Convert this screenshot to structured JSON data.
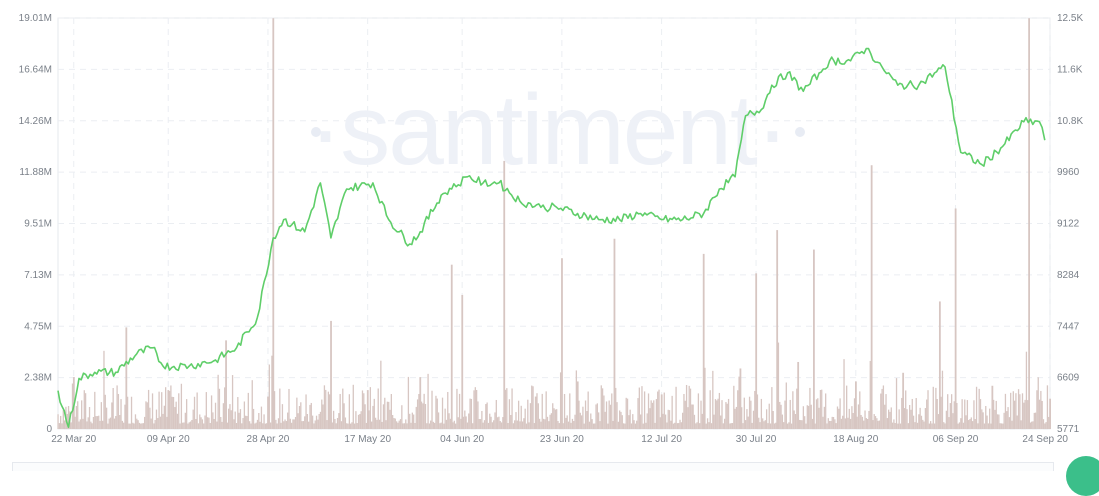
{
  "chart_data": {
    "type": "line",
    "watermark": "·santiment·",
    "x_tick_labels": [
      "22 Mar 20",
      "09 Apr 20",
      "28 Apr 20",
      "17 May 20",
      "04 Jun 20",
      "23 Jun 20",
      "12 Jul 20",
      "30 Jul 20",
      "18 Aug 20",
      "06 Sep 20",
      "24 Sep 20"
    ],
    "y_left_tick_labels": [
      "0",
      "2.38M",
      "4.75M",
      "7.13M",
      "9.51M",
      "11.88M",
      "14.26M",
      "16.64M",
      "19.01M"
    ],
    "y_right_tick_labels": [
      "5771",
      "6609",
      "7447",
      "8284",
      "9122",
      "9960",
      "10.8K",
      "11.6K",
      "12.5K"
    ],
    "y_left_range": [
      0,
      19010000
    ],
    "y_right_range": [
      5771,
      12500
    ],
    "x_range_days": [
      "2020-03-19",
      "2020-09-24"
    ],
    "grid": true,
    "colors": {
      "price": "#5fce69",
      "volume": "#d7c6c2",
      "grid": "#ebeef2"
    },
    "series": [
      {
        "kind": "volume",
        "axis": "left",
        "x": [
          "2020-03-22",
          "2020-04-01",
          "2020-04-09",
          "2020-04-20",
          "2020-04-28",
          "2020-04-29",
          "2020-05-10",
          "2020-05-17",
          "2020-05-27",
          "2020-06-02",
          "2020-06-04",
          "2020-06-12",
          "2020-06-18",
          "2020-06-23",
          "2020-06-26",
          "2020-07-03",
          "2020-07-12",
          "2020-07-20",
          "2020-07-27",
          "2020-07-30",
          "2020-08-03",
          "2020-08-07",
          "2020-08-10",
          "2020-08-18",
          "2020-08-21",
          "2020-08-27",
          "2020-09-03",
          "2020-09-06",
          "2020-09-13",
          "2020-09-20",
          "2020-09-24"
        ],
        "values": [
          2400000,
          4700000,
          1800000,
          4100000,
          1500000,
          19000000,
          5000000,
          1800000,
          2400000,
          7600000,
          6200000,
          12400000,
          1500000,
          7900000,
          2200000,
          8800000,
          1600000,
          8100000,
          2800000,
          7200000,
          9200000,
          3100000,
          8300000,
          2200000,
          12200000,
          2600000,
          5900000,
          10200000,
          2000000,
          19000000,
          1400000
        ]
      },
      {
        "kind": "price",
        "axis": "right",
        "x": [
          "2020-03-19",
          "2020-03-21",
          "2020-03-23",
          "2020-03-26",
          "2020-03-30",
          "2020-04-03",
          "2020-04-06",
          "2020-04-08",
          "2020-04-13",
          "2020-04-18",
          "2020-04-22",
          "2020-04-26",
          "2020-04-29",
          "2020-05-01",
          "2020-05-05",
          "2020-05-08",
          "2020-05-10",
          "2020-05-13",
          "2020-05-18",
          "2020-05-21",
          "2020-05-25",
          "2020-05-27",
          "2020-05-31",
          "2020-06-02",
          "2020-06-05",
          "2020-06-08",
          "2020-06-11",
          "2020-06-15",
          "2020-06-19",
          "2020-06-22",
          "2020-06-26",
          "2020-06-30",
          "2020-07-04",
          "2020-07-08",
          "2020-07-12",
          "2020-07-16",
          "2020-07-20",
          "2020-07-23",
          "2020-07-26",
          "2020-07-28",
          "2020-07-31",
          "2020-08-02",
          "2020-08-05",
          "2020-08-08",
          "2020-08-11",
          "2020-08-13",
          "2020-08-17",
          "2020-08-20",
          "2020-08-23",
          "2020-08-26",
          "2020-08-30",
          "2020-09-02",
          "2020-09-04",
          "2020-09-07",
          "2020-09-11",
          "2020-09-15",
          "2020-09-19",
          "2020-09-22",
          "2020-09-23"
        ],
        "values": [
          6400,
          5800,
          6600,
          6700,
          6700,
          7000,
          7100,
          6800,
          6800,
          6900,
          7100,
          7600,
          8900,
          9200,
          9000,
          9800,
          8900,
          9700,
          9800,
          9200,
          8800,
          9000,
          9600,
          9700,
          9900,
          9800,
          9800,
          9500,
          9400,
          9400,
          9300,
          9200,
          9200,
          9300,
          9200,
          9200,
          9300,
          9700,
          9900,
          10900,
          11000,
          11400,
          11600,
          11300,
          11600,
          11800,
          11800,
          12000,
          11700,
          11400,
          11400,
          11600,
          11700,
          10300,
          10100,
          10400,
          10800,
          10800,
          10500
        ]
      }
    ]
  }
}
